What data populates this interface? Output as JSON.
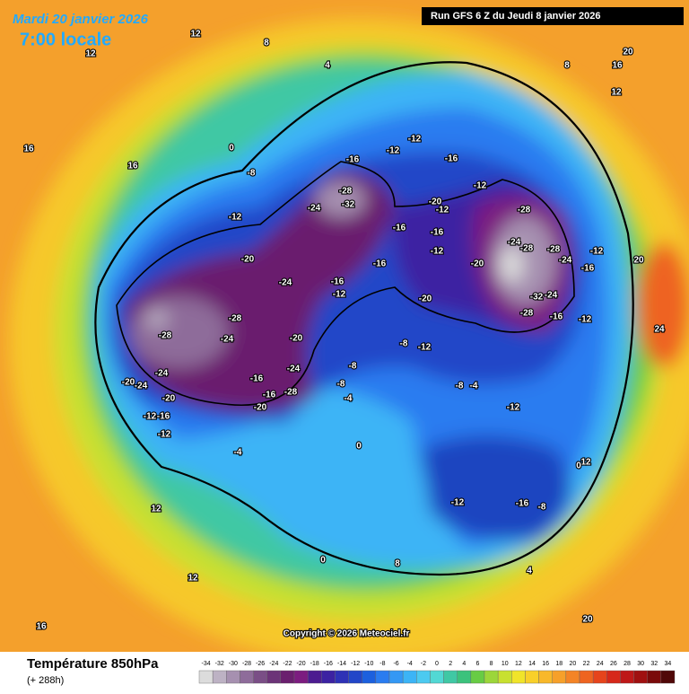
{
  "header": {
    "date": "Mardi 20 janvier 2026",
    "time": "7:00 locale",
    "run": "Run GFS 6 Z du Jeudi 8 janvier 2026"
  },
  "copyright": "Copyright © 2026 Meteociel.fr",
  "footer": {
    "title": "Température 850hPa",
    "lead": "(+ 288h)"
  },
  "colorbar": {
    "ticks": [
      -34,
      -32,
      -30,
      -28,
      -26,
      -24,
      -22,
      -20,
      -18,
      -16,
      -14,
      -12,
      -10,
      -8,
      -6,
      -4,
      -2,
      0,
      2,
      4,
      6,
      8,
      10,
      12,
      14,
      16,
      18,
      20,
      22,
      24,
      26,
      28,
      30,
      32,
      34
    ],
    "colors": [
      "#dcdcdc",
      "#bdb2c4",
      "#a690b0",
      "#8e6c9a",
      "#7a4e86",
      "#6c3478",
      "#6a1f6e",
      "#7c1c80",
      "#4c1c90",
      "#3c22a2",
      "#2e32b6",
      "#2246c8",
      "#1c60de",
      "#2a7cf0",
      "#3498f4",
      "#3cb4f6",
      "#4ccaf0",
      "#52d8d4",
      "#40c8a4",
      "#3cc27c",
      "#68cc44",
      "#9cd63a",
      "#c8e030",
      "#f0e42a",
      "#f8d02a",
      "#f8b82a",
      "#f6a02a",
      "#f48426",
      "#ee6420",
      "#e6441c",
      "#d6281a",
      "#be1818",
      "#a01010",
      "#7a0a0a",
      "#500808"
    ]
  },
  "mapLabels": [
    -28,
    -32,
    -24,
    -16,
    -12,
    -12,
    -16,
    -20,
    -12,
    -12,
    -16,
    -16,
    -12,
    -20,
    -28,
    -24,
    -28,
    -28,
    -24,
    -16,
    -12,
    -20,
    -32,
    -24,
    -28,
    -16,
    -12,
    -20,
    -24,
    -28,
    -24,
    -28,
    -24,
    -20,
    -24,
    -20,
    -12,
    -16,
    -12,
    -16,
    -20,
    -24,
    -28,
    -16,
    -20,
    -8,
    -8,
    -12,
    -8,
    -4,
    -8,
    -4,
    -12,
    -12,
    -16,
    -8,
    -12,
    -16,
    -16,
    -8,
    -12,
    0,
    4,
    8,
    12,
    16,
    12,
    16,
    12,
    16,
    12,
    8,
    20,
    20,
    24,
    0,
    0,
    4,
    8,
    12,
    12,
    16,
    20,
    -4,
    0
  ]
}
